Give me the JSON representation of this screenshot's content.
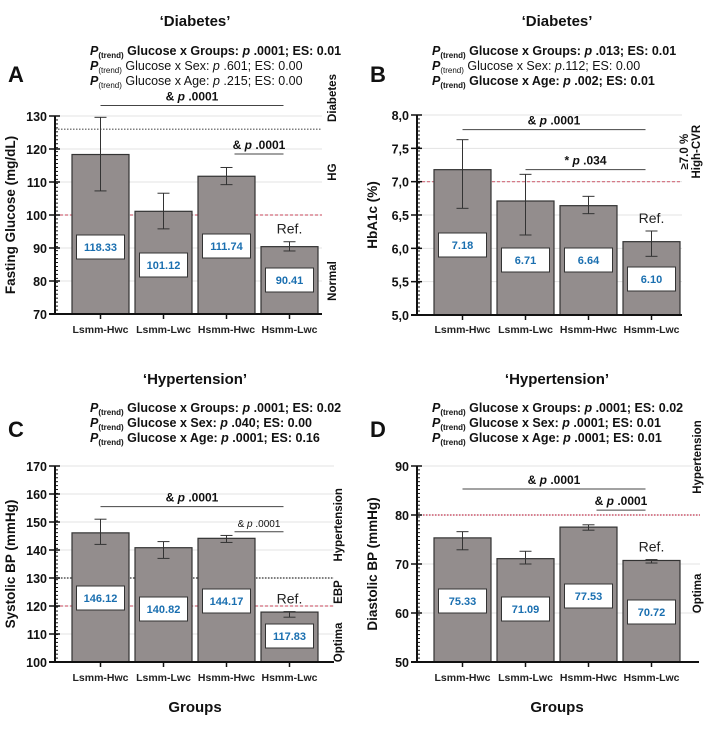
{
  "figure": {
    "x_axis_title": "Groups"
  },
  "chart_data": [
    {
      "type": "bar",
      "panel": "A",
      "title": "‘Diabetes’",
      "stats": [
        {
          "prefix": "P",
          "sub": "(trend)",
          "text": " Glucose x Groups: ",
          "p": "p",
          "rest": " .0001; ES: 0.01",
          "bold": true
        },
        {
          "prefix": "P",
          "sub": "(trend)",
          "text": " Glucose x Sex: ",
          "p": "p",
          "rest": " .601; ES: 0.00",
          "bold": false
        },
        {
          "prefix": "P",
          "sub": "(trend)",
          "text": " Glucose x Age: ",
          "p": "p",
          "rest": " .215; ES: 0.00",
          "bold": false
        }
      ],
      "categories": [
        "Lsmm-Hwc",
        "Lsmm-Lwc",
        "Hsmm-Hwc",
        "Hsmm-Lwc"
      ],
      "values": [
        118.33,
        101.12,
        111.74,
        90.41
      ],
      "value_labels": [
        "118.33",
        "101.12",
        "111.74",
        "90.41"
      ],
      "error_low": [
        107.3,
        95.8,
        109.2,
        89.1
      ],
      "error_high": [
        129.6,
        106.6,
        114.4,
        91.9
      ],
      "ylabel": "Fasting Glucose (mg/dL)",
      "xlabel": "",
      "ylim": [
        70,
        130
      ],
      "yticks": [
        70,
        80,
        90,
        100,
        110,
        120,
        130
      ],
      "ytick_labels": [
        "70",
        "80",
        "90",
        "100",
        "110",
        "120",
        "130"
      ],
      "grid": true,
      "reference_lines": [
        {
          "value": 126,
          "style": "dotted",
          "color": "#555555"
        },
        {
          "value": 100,
          "style": "dashed",
          "color": "#d26a7a"
        }
      ],
      "zones": [
        {
          "label": "Diabetes",
          "center": 133
        },
        {
          "label": "HG",
          "center": 113
        },
        {
          "label": "Normal",
          "center": 80
        }
      ],
      "brackets": [
        {
          "from": 0,
          "to": 3,
          "y": 133.2,
          "label": "& p .0001",
          "small": false
        },
        {
          "from": 2,
          "to": 3,
          "y": 118.5,
          "label": "& p .0001",
          "small": false
        }
      ],
      "ref_label": "Ref.",
      "ref_index": 3
    },
    {
      "type": "bar",
      "panel": "B",
      "title": "‘Diabetes’",
      "stats": [
        {
          "prefix": "P",
          "sub": "(trend)",
          "text": " Glucose x Groups: ",
          "p": "p",
          "rest": " .013; ES: 0.01",
          "bold": true
        },
        {
          "prefix": "P",
          "sub": "(trend)",
          "text": " Glucose x Sex: ",
          "p": "p",
          "rest": ".112; ES: 0.00",
          "bold": false
        },
        {
          "prefix": "P",
          "sub": "(trend)",
          "text": " Glucose x Age: ",
          "p": "p",
          "rest": " .002; ES: 0.01",
          "bold": true
        }
      ],
      "categories": [
        "Lsmm-Hwc",
        "Lsmm-Lwc",
        "Hsmm-Hwc",
        "Hsmm-Lwc"
      ],
      "values": [
        7.18,
        6.71,
        6.64,
        6.1
      ],
      "value_labels": [
        "7.18",
        "6.71",
        "6.64",
        "6.10"
      ],
      "error_low": [
        6.6,
        6.2,
        6.52,
        5.88
      ],
      "error_high": [
        7.63,
        7.11,
        6.78,
        6.26
      ],
      "ylabel": "HbA1c (%)",
      "xlabel": "",
      "ylim": [
        5.0,
        8.0
      ],
      "yticks": [
        5.0,
        5.5,
        6.0,
        6.5,
        7.0,
        7.5,
        8.0
      ],
      "ytick_labels": [
        "5,0",
        "5,5",
        "6,0",
        "6,5",
        "7,0",
        "7,5",
        "8,0"
      ],
      "grid": true,
      "reference_lines": [
        {
          "value": 7.0,
          "style": "dashed",
          "color": "#d26a7a"
        }
      ],
      "zones": [
        {
          "label": "≥7.0 %",
          "center": 7.45,
          "line2": "High-CVR"
        }
      ],
      "brackets": [
        {
          "from": 0,
          "to": 3,
          "y": 7.78,
          "label": "& p .0001",
          "small": false
        },
        {
          "from": 1,
          "to": 3,
          "y": 7.18,
          "label": "*  p .034",
          "small": false
        }
      ],
      "ref_label": "Ref.",
      "ref_index": 3
    },
    {
      "type": "bar",
      "panel": "C",
      "title": "‘Hypertension’",
      "stats": [
        {
          "prefix": "P",
          "sub": "(trend)",
          "text": " Glucose x Groups: ",
          "p": "p",
          "rest": " .0001; ES: 0.02",
          "bold": true
        },
        {
          "prefix": "P",
          "sub": "(trend)",
          "text": " Glucose x Sex: ",
          "p": "p",
          "rest": " .040; ES: 0.00",
          "bold": true
        },
        {
          "prefix": "P",
          "sub": "(trend)",
          "text": " Glucose x Age: ",
          "p": "p",
          "rest": " .0001; ES: 0.16",
          "bold": true
        }
      ],
      "categories": [
        "Lsmm-Hwc",
        "Lsmm-Lwc",
        "Hsmm-Hwc",
        "Hsmm-Lwc"
      ],
      "values": [
        146.12,
        140.82,
        144.17,
        117.83
      ],
      "value_labels": [
        "146.12",
        "140.82",
        "144.17",
        "117.83"
      ],
      "error_low": [
        142.0,
        137.0,
        142.7,
        116.0
      ],
      "error_high": [
        151.0,
        143.0,
        145.2,
        118.0
      ],
      "ylabel": "Systolic BP (mmHg)",
      "xlabel": "Groups",
      "ylim": [
        100,
        170
      ],
      "yticks": [
        100,
        110,
        120,
        130,
        140,
        150,
        160,
        170
      ],
      "ytick_labels": [
        "100",
        "110",
        "120",
        "130",
        "140",
        "150",
        "160",
        "170"
      ],
      "grid": true,
      "reference_lines": [
        {
          "value": 130,
          "style": "dotted",
          "color": "#333333"
        },
        {
          "value": 120,
          "style": "dashed",
          "color": "#d26a7a"
        }
      ],
      "zones": [
        {
          "label": "Hypertension",
          "center": 149
        },
        {
          "label": "EBP",
          "center": 125
        },
        {
          "label": "Optima",
          "center": 107
        }
      ],
      "brackets": [
        {
          "from": 0,
          "to": 3,
          "y": 155.5,
          "label": "& p .0001",
          "small": false
        },
        {
          "from": 2,
          "to": 3,
          "y": 146.5,
          "label": "& p .0001",
          "small": true
        }
      ],
      "ref_label": "Ref.",
      "ref_index": 3
    },
    {
      "type": "bar",
      "panel": "D",
      "title": "‘Hypertension’",
      "stats": [
        {
          "prefix": "P",
          "sub": "(trend)",
          "text": " Glucose x Groups: ",
          "p": "p",
          "rest": " .0001; ES: 0.02",
          "bold": true
        },
        {
          "prefix": "P",
          "sub": "(trend)",
          "text": " Glucose x Sex: ",
          "p": "p",
          "rest": " .0001; ES: 0.01",
          "bold": true
        },
        {
          "prefix": "P",
          "sub": "(trend)",
          "text": " Glucose x Age: ",
          "p": "p",
          "rest": " .0001; ES: 0.01",
          "bold": true
        }
      ],
      "categories": [
        "Lsmm-Hwc",
        "Lsmm-Lwc",
        "Hsmm-Hwc",
        "Hsmm-Lwc"
      ],
      "values": [
        75.33,
        71.09,
        77.53,
        70.72
      ],
      "value_labels": [
        "75.33",
        "71.09",
        "77.53",
        "70.72"
      ],
      "error_low": [
        72.9,
        70.0,
        76.9,
        70.2
      ],
      "error_high": [
        76.6,
        72.6,
        78.0,
        70.9
      ],
      "ylabel": "Diastolic BP (mmHg)",
      "xlabel": "Groups",
      "ylim": [
        50,
        90
      ],
      "yticks": [
        50,
        60,
        70,
        80,
        90
      ],
      "ytick_labels": [
        "50",
        "60",
        "70",
        "80",
        "90"
      ],
      "grid": true,
      "reference_lines": [
        {
          "value": 80,
          "style": "dotted",
          "color": "#c2334d"
        }
      ],
      "zones": [
        {
          "label": "Hypertension",
          "center": 88
        },
        {
          "label": "Optima",
          "center": 64
        }
      ],
      "brackets": [
        {
          "from": 0,
          "to": 3,
          "y": 85.3,
          "label": "& p .0001",
          "small": false
        },
        {
          "from": 2,
          "to": 3,
          "y": 81.0,
          "label": "& p .0001",
          "small": false
        }
      ],
      "ref_label": "Ref.",
      "ref_index": 3
    }
  ]
}
